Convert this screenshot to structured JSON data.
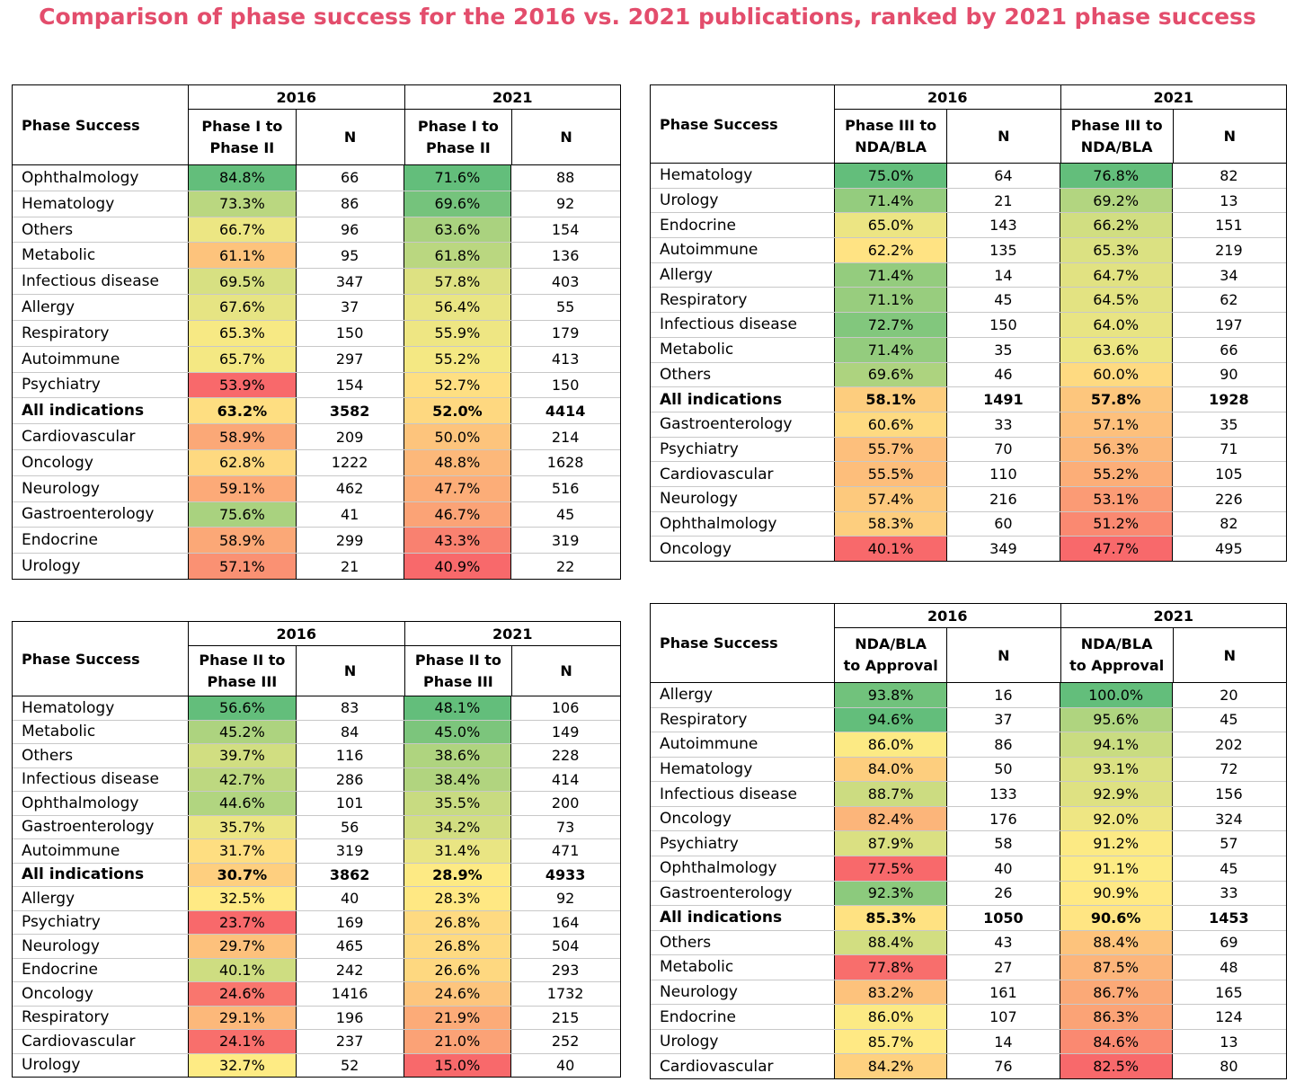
{
  "title": "Comparison of phase success for the 2016 vs. 2021 publications, ranked by 2021 phase success",
  "chart_data": [
    {
      "type": "table",
      "header_label": "Phase Success",
      "years": [
        "2016",
        "2021"
      ],
      "phase_label": [
        "Phase I to",
        "Phase II"
      ],
      "n_label": "N",
      "rows": [
        {
          "name": "Ophthalmology",
          "p2016": 84.8,
          "n2016": 66,
          "p2021": 71.6,
          "n2021": 88
        },
        {
          "name": "Hematology",
          "p2016": 73.3,
          "n2016": 86,
          "p2021": 69.6,
          "n2021": 92
        },
        {
          "name": "Others",
          "p2016": 66.7,
          "n2016": 96,
          "p2021": 63.6,
          "n2021": 154
        },
        {
          "name": "Metabolic",
          "p2016": 61.1,
          "n2016": 95,
          "p2021": 61.8,
          "n2021": 136
        },
        {
          "name": "Infectious disease",
          "p2016": 69.5,
          "n2016": 347,
          "p2021": 57.8,
          "n2021": 403
        },
        {
          "name": "Allergy",
          "p2016": 67.6,
          "n2016": 37,
          "p2021": 56.4,
          "n2021": 55
        },
        {
          "name": "Respiratory",
          "p2016": 65.3,
          "n2016": 150,
          "p2021": 55.9,
          "n2021": 179
        },
        {
          "name": "Autoimmune",
          "p2016": 65.7,
          "n2016": 297,
          "p2021": 55.2,
          "n2021": 413
        },
        {
          "name": "Psychiatry",
          "p2016": 53.9,
          "n2016": 154,
          "p2021": 52.7,
          "n2021": 150
        },
        {
          "name": "All indications",
          "p2016": 63.2,
          "n2016": 3582,
          "p2021": 52.0,
          "n2021": 4414,
          "bold": true
        },
        {
          "name": "Cardiovascular",
          "p2016": 58.9,
          "n2016": 209,
          "p2021": 50.0,
          "n2021": 214
        },
        {
          "name": "Oncology",
          "p2016": 62.8,
          "n2016": 1222,
          "p2021": 48.8,
          "n2021": 1628
        },
        {
          "name": "Neurology",
          "p2016": 59.1,
          "n2016": 462,
          "p2021": 47.7,
          "n2021": 516
        },
        {
          "name": "Gastroenterology",
          "p2016": 75.6,
          "n2016": 41,
          "p2021": 46.7,
          "n2021": 45
        },
        {
          "name": "Endocrine",
          "p2016": 58.9,
          "n2016": 299,
          "p2021": 43.3,
          "n2021": 319
        },
        {
          "name": "Urology",
          "p2016": 57.1,
          "n2016": 21,
          "p2021": 40.9,
          "n2021": 22
        }
      ]
    },
    {
      "type": "table",
      "header_label": "Phase Success",
      "years": [
        "2016",
        "2021"
      ],
      "phase_label": [
        "Phase III to",
        "NDA/BLA"
      ],
      "n_label": "N",
      "rows": [
        {
          "name": "Hematology",
          "p2016": 75.0,
          "n2016": 64,
          "p2021": 76.8,
          "n2021": 82
        },
        {
          "name": "Urology",
          "p2016": 71.4,
          "n2016": 21,
          "p2021": 69.2,
          "n2021": 13
        },
        {
          "name": "Endocrine",
          "p2016": 65.0,
          "n2016": 143,
          "p2021": 66.2,
          "n2021": 151
        },
        {
          "name": "Autoimmune",
          "p2016": 62.2,
          "n2016": 135,
          "p2021": 65.3,
          "n2021": 219
        },
        {
          "name": "Allergy",
          "p2016": 71.4,
          "n2016": 14,
          "p2021": 64.7,
          "n2021": 34
        },
        {
          "name": "Respiratory",
          "p2016": 71.1,
          "n2016": 45,
          "p2021": 64.5,
          "n2021": 62
        },
        {
          "name": "Infectious disease",
          "p2016": 72.7,
          "n2016": 150,
          "p2021": 64.0,
          "n2021": 197
        },
        {
          "name": "Metabolic",
          "p2016": 71.4,
          "n2016": 35,
          "p2021": 63.6,
          "n2021": 66
        },
        {
          "name": "Others",
          "p2016": 69.6,
          "n2016": 46,
          "p2021": 60.0,
          "n2021": 90
        },
        {
          "name": "All indications",
          "p2016": 58.1,
          "n2016": 1491,
          "p2021": 57.8,
          "n2021": 1928,
          "bold": true
        },
        {
          "name": "Gastroenterology",
          "p2016": 60.6,
          "n2016": 33,
          "p2021": 57.1,
          "n2021": 35
        },
        {
          "name": "Psychiatry",
          "p2016": 55.7,
          "n2016": 70,
          "p2021": 56.3,
          "n2021": 71
        },
        {
          "name": "Cardiovascular",
          "p2016": 55.5,
          "n2016": 110,
          "p2021": 55.2,
          "n2021": 105
        },
        {
          "name": "Neurology",
          "p2016": 57.4,
          "n2016": 216,
          "p2021": 53.1,
          "n2021": 226
        },
        {
          "name": "Ophthalmology",
          "p2016": 58.3,
          "n2016": 60,
          "p2021": 51.2,
          "n2021": 82
        },
        {
          "name": "Oncology",
          "p2016": 40.1,
          "n2016": 349,
          "p2021": 47.7,
          "n2021": 495
        }
      ]
    },
    {
      "type": "table",
      "header_label": "Phase Success",
      "years": [
        "2016",
        "2021"
      ],
      "phase_label": [
        "Phase II to",
        "Phase III"
      ],
      "n_label": "N",
      "rows": [
        {
          "name": "Hematology",
          "p2016": 56.6,
          "n2016": 83,
          "p2021": 48.1,
          "n2021": 106
        },
        {
          "name": "Metabolic",
          "p2016": 45.2,
          "n2016": 84,
          "p2021": 45.0,
          "n2021": 149
        },
        {
          "name": "Others",
          "p2016": 39.7,
          "n2016": 116,
          "p2021": 38.6,
          "n2021": 228
        },
        {
          "name": "Infectious disease",
          "p2016": 42.7,
          "n2016": 286,
          "p2021": 38.4,
          "n2021": 414
        },
        {
          "name": "Ophthalmology",
          "p2016": 44.6,
          "n2016": 101,
          "p2021": 35.5,
          "n2021": 200
        },
        {
          "name": "Gastroenterology",
          "p2016": 35.7,
          "n2016": 56,
          "p2021": 34.2,
          "n2021": 73
        },
        {
          "name": "Autoimmune",
          "p2016": 31.7,
          "n2016": 319,
          "p2021": 31.4,
          "n2021": 471
        },
        {
          "name": "All indications",
          "p2016": 30.7,
          "n2016": 3862,
          "p2021": 28.9,
          "n2021": 4933,
          "bold": true
        },
        {
          "name": "Allergy",
          "p2016": 32.5,
          "n2016": 40,
          "p2021": 28.3,
          "n2021": 92
        },
        {
          "name": "Psychiatry",
          "p2016": 23.7,
          "n2016": 169,
          "p2021": 26.8,
          "n2021": 164
        },
        {
          "name": "Neurology",
          "p2016": 29.7,
          "n2016": 465,
          "p2021": 26.8,
          "n2021": 504
        },
        {
          "name": "Endocrine",
          "p2016": 40.1,
          "n2016": 242,
          "p2021": 26.6,
          "n2021": 293
        },
        {
          "name": "Oncology",
          "p2016": 24.6,
          "n2016": 1416,
          "p2021": 24.6,
          "n2021": 1732
        },
        {
          "name": "Respiratory",
          "p2016": 29.1,
          "n2016": 196,
          "p2021": 21.9,
          "n2021": 215
        },
        {
          "name": "Cardiovascular",
          "p2016": 24.1,
          "n2016": 237,
          "p2021": 21.0,
          "n2021": 252
        },
        {
          "name": "Urology",
          "p2016": 32.7,
          "n2016": 52,
          "p2021": 15.0,
          "n2021": 40
        }
      ]
    },
    {
      "type": "table",
      "header_label": "Phase Success",
      "years": [
        "2016",
        "2021"
      ],
      "phase_label": [
        "NDA/BLA",
        "to Approval"
      ],
      "n_label": "N",
      "rows": [
        {
          "name": "Allergy",
          "p2016": 93.8,
          "n2016": 16,
          "p2021": 100.0,
          "n2021": 20
        },
        {
          "name": "Respiratory",
          "p2016": 94.6,
          "n2016": 37,
          "p2021": 95.6,
          "n2021": 45
        },
        {
          "name": "Autoimmune",
          "p2016": 86.0,
          "n2016": 86,
          "p2021": 94.1,
          "n2021": 202
        },
        {
          "name": "Hematology",
          "p2016": 84.0,
          "n2016": 50,
          "p2021": 93.1,
          "n2021": 72
        },
        {
          "name": "Infectious disease",
          "p2016": 88.7,
          "n2016": 133,
          "p2021": 92.9,
          "n2021": 156
        },
        {
          "name": "Oncology",
          "p2016": 82.4,
          "n2016": 176,
          "p2021": 92.0,
          "n2021": 324
        },
        {
          "name": "Psychiatry",
          "p2016": 87.9,
          "n2016": 58,
          "p2021": 91.2,
          "n2021": 57
        },
        {
          "name": "Ophthalmology",
          "p2016": 77.5,
          "n2016": 40,
          "p2021": 91.1,
          "n2021": 45
        },
        {
          "name": "Gastroenterology",
          "p2016": 92.3,
          "n2016": 26,
          "p2021": 90.9,
          "n2021": 33
        },
        {
          "name": "All indications",
          "p2016": 85.3,
          "n2016": 1050,
          "p2021": 90.6,
          "n2021": 1453,
          "bold": true
        },
        {
          "name": "Others",
          "p2016": 88.4,
          "n2016": 43,
          "p2021": 88.4,
          "n2021": 69
        },
        {
          "name": "Metabolic",
          "p2016": 77.8,
          "n2016": 27,
          "p2021": 87.5,
          "n2021": 48
        },
        {
          "name": "Neurology",
          "p2016": 83.2,
          "n2016": 161,
          "p2021": 86.7,
          "n2021": 165
        },
        {
          "name": "Endocrine",
          "p2016": 86.0,
          "n2016": 107,
          "p2021": 86.3,
          "n2021": 124
        },
        {
          "name": "Urology",
          "p2016": 85.7,
          "n2016": 14,
          "p2021": 84.6,
          "n2021": 13
        },
        {
          "name": "Cardiovascular",
          "p2016": 84.2,
          "n2016": 76,
          "p2021": 82.5,
          "n2021": 80
        }
      ]
    }
  ],
  "colors": {
    "title": "#e34d6c",
    "scale_low": "#f8696b",
    "scale_mid": "#ffeb84",
    "scale_high": "#63be7b"
  }
}
